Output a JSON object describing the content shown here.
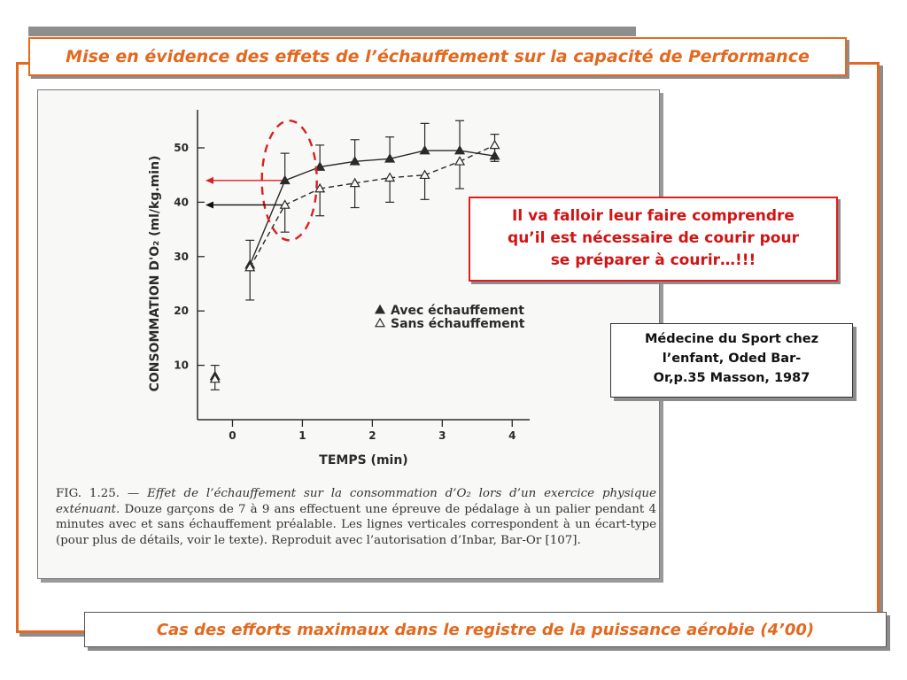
{
  "slide": {
    "title": "Mise en évidence des effets de l’échauffement sur la capacité de Performance",
    "callout": [
      "Il va falloir leur faire comprendre",
      "qu’il est nécessaire de courir pour",
      "se préparer à courir…!!!"
    ],
    "reference": [
      "Médecine du Sport chez",
      "l’enfant, Oded Bar-",
      "Or,p.35 Masson, 1987"
    ],
    "footer": "Cas des efforts maximaux dans le registre de la puissance aérobie (4’00)",
    "colors": {
      "accent": "#e2691f",
      "callout_red": "#d01414",
      "arrow_red": "#d92020"
    }
  },
  "figure": {
    "caption": {
      "number": "FIG. 1.25. —",
      "title_italic": "Effet de l’échauffement sur la consommation d’O₂ lors d’un exercice physique exténuant.",
      "body": "Douze garçons de 7 à 9 ans effectuent une épreuve de pédalage à un palier pendant 4 minutes avec et sans échauffement préalable. Les lignes verticales correspondent à un écart-type (pour plus de détails, voir le texte). Reproduit avec l’autorisation d’Inbar, Bar-Or [107]."
    }
  },
  "chart_data": {
    "type": "line",
    "xlabel": "TEMPS (min)",
    "ylabel": "CONSOMMATION D'O₂ (ml/kg.min)",
    "xlim": [
      -0.5,
      4.25
    ],
    "ylim": [
      0,
      57
    ],
    "x_ticks": [
      0,
      1,
      2,
      3,
      4
    ],
    "y_ticks": [
      10,
      20,
      30,
      40,
      50
    ],
    "legend_position": "center-right",
    "series": [
      {
        "name": "Avec échauffement",
        "marker": "filled-triangle",
        "line": "solid",
        "x": [
          -0.25,
          0.25,
          0.75,
          1.25,
          1.75,
          2.25,
          2.75,
          3.25,
          3.75
        ],
        "y": [
          8,
          28.5,
          44,
          46.5,
          47.5,
          48,
          49.5,
          49.5,
          48.5
        ],
        "sd": [
          2,
          4.5,
          5,
          4,
          4,
          4,
          5,
          5.5,
          4
        ]
      },
      {
        "name": "Sans échauffement",
        "marker": "open-triangle",
        "line": "dashed",
        "x": [
          -0.25,
          0.25,
          0.75,
          1.25,
          1.75,
          2.25,
          2.75,
          3.25,
          3.75
        ],
        "y": [
          7.5,
          28,
          39.5,
          42.5,
          43.5,
          44.5,
          45,
          47.5,
          50.5
        ],
        "sd": [
          2,
          6,
          5,
          5,
          4.5,
          4.5,
          4.5,
          5,
          3
        ]
      }
    ],
    "annotations": [
      {
        "type": "ellipse",
        "around_x": 0.75,
        "y_range": [
          33,
          55
        ]
      },
      {
        "type": "arrow",
        "to_y": 44,
        "color": "red"
      },
      {
        "type": "arrow",
        "to_y": 39.5,
        "color": "black"
      }
    ]
  }
}
